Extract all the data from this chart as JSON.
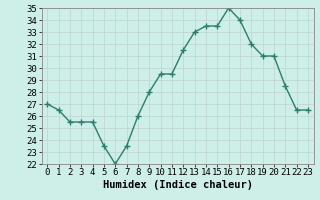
{
  "x": [
    0,
    1,
    2,
    3,
    4,
    5,
    6,
    7,
    8,
    9,
    10,
    11,
    12,
    13,
    14,
    15,
    16,
    17,
    18,
    19,
    20,
    21,
    22,
    23
  ],
  "y": [
    27.0,
    26.5,
    25.5,
    25.5,
    25.5,
    23.5,
    22.0,
    23.5,
    26.0,
    28.0,
    29.5,
    29.5,
    31.5,
    33.0,
    33.5,
    33.5,
    35.0,
    34.0,
    32.0,
    31.0,
    31.0,
    28.5,
    26.5,
    26.5
  ],
  "xlim": [
    -0.5,
    23.5
  ],
  "ylim": [
    22,
    35
  ],
  "yticks": [
    22,
    23,
    24,
    25,
    26,
    27,
    28,
    29,
    30,
    31,
    32,
    33,
    34,
    35
  ],
  "xticks": [
    0,
    1,
    2,
    3,
    4,
    5,
    6,
    7,
    8,
    9,
    10,
    11,
    12,
    13,
    14,
    15,
    16,
    17,
    18,
    19,
    20,
    21,
    22,
    23
  ],
  "xlabel": "Humidex (Indice chaleur)",
  "line_color": "#2d7d6e",
  "marker": "+",
  "bg_color": "#ceeee8",
  "grid_color": "#c0d8d4",
  "spine_color": "#888888",
  "xlabel_fontsize": 7.5,
  "tick_fontsize": 6.5,
  "line_width": 1.0,
  "marker_size": 4,
  "marker_edge_width": 1.0
}
